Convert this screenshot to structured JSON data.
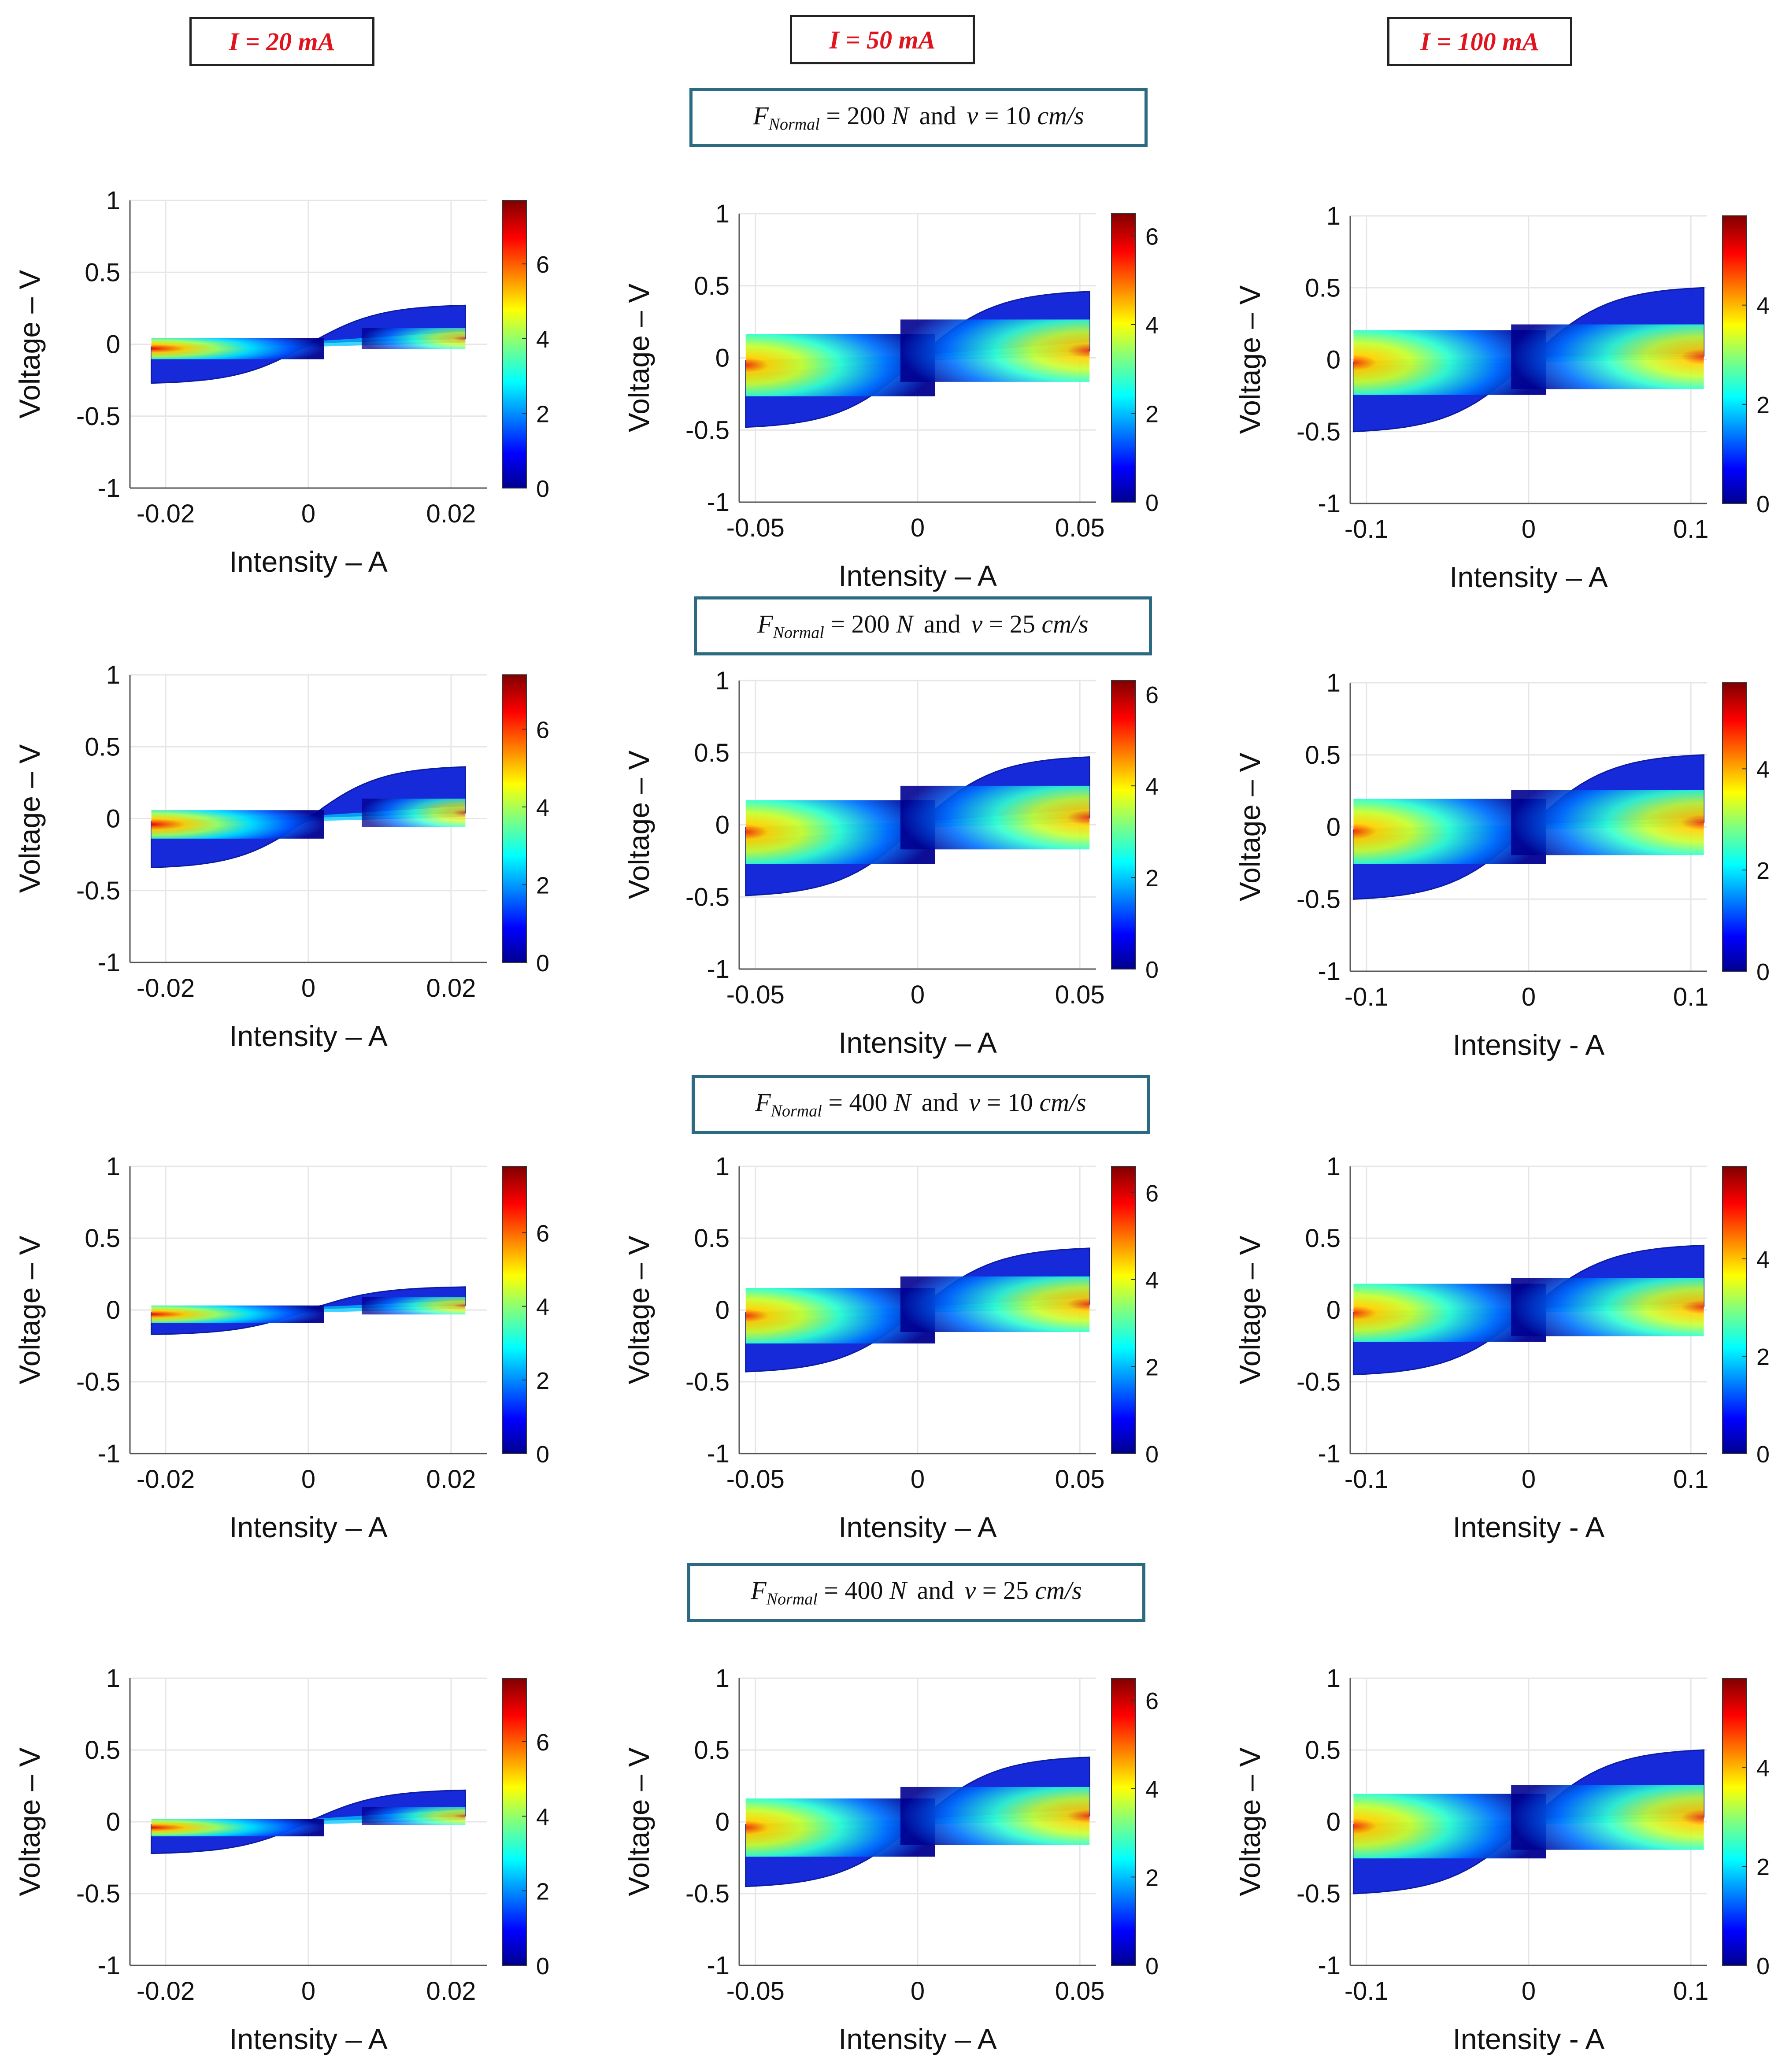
{
  "headers": {
    "col1": "I = 20 mA",
    "col2": "I = 50 mA",
    "col3": "I = 100 mA"
  },
  "conditions": [
    {
      "fvar": "F",
      "fsub": "Normal",
      "force": "= 200",
      "funit": "N",
      "and": "and",
      "vvar": "v",
      "speed": "= 10",
      "vunit": "cm/s"
    },
    {
      "fvar": "F",
      "fsub": "Normal",
      "force": "= 200",
      "funit": "N",
      "and": "and",
      "vvar": "v",
      "speed": "= 25",
      "vunit": "cm/s"
    },
    {
      "fvar": "F",
      "fsub": "Normal",
      "force": "= 400",
      "funit": "N",
      "and": "and",
      "vvar": "v",
      "speed": "= 10",
      "vunit": "cm/s"
    },
    {
      "fvar": "F",
      "fsub": "Normal",
      "force": "= 400",
      "funit": "N",
      "and": "and",
      "vvar": "v",
      "speed": "= 25",
      "vunit": "cm/s"
    }
  ],
  "colors": {
    "header_text": "#e0141e",
    "cond_border": "#2b6a80",
    "grid": "#e6e6e6",
    "axis": "#555555",
    "text": "#111111"
  },
  "chart_data": [
    {
      "type": "heatmap",
      "panel": "r1c1",
      "title": "",
      "xlabel": "Intensity – A",
      "ylabel": "Voltage – V",
      "xlim": [
        -0.025,
        0.025
      ],
      "ylim": [
        -1,
        1
      ],
      "xticks": [
        -0.02,
        0,
        0.02
      ],
      "xticklabels": [
        "-0.02",
        "0",
        "0.02"
      ],
      "yticks": [
        -1,
        -0.5,
        0,
        0.5,
        1
      ],
      "yticklabels": [
        "-1",
        "-0.5",
        "0",
        "0.5",
        "1"
      ],
      "colorbar": {
        "min": 0,
        "max": 7.7,
        "ticks": [
          0,
          2,
          4,
          6
        ]
      },
      "i_amp": 0.022,
      "v_upper_pos": 0.27,
      "v_lower_neg": -0.27,
      "band_pos": 0.04,
      "band_neg": -0.03,
      "hot_side": "negative"
    },
    {
      "type": "heatmap",
      "panel": "r1c2",
      "title": "",
      "xlabel": "Intensity – A",
      "ylabel": "Voltage – V",
      "xlim": [
        -0.055,
        0.055
      ],
      "ylim": [
        -1,
        1
      ],
      "xticks": [
        -0.05,
        0,
        0.05
      ],
      "xticklabels": [
        "-0.05",
        "0",
        "0.05"
      ],
      "yticks": [
        -1,
        -0.5,
        0,
        0.5,
        1
      ],
      "yticklabels": [
        "-1",
        "-0.5",
        "0",
        "0.5",
        "1"
      ],
      "colorbar": {
        "min": 0,
        "max": 6.5,
        "ticks": [
          0,
          2,
          4,
          6
        ]
      },
      "i_amp": 0.053,
      "v_upper_pos": 0.46,
      "v_lower_neg": -0.48,
      "band_pos": 0.05,
      "band_neg": -0.05,
      "hot_side": "both"
    },
    {
      "type": "heatmap",
      "panel": "r1c3",
      "title": "",
      "xlabel": "Intensity – A",
      "ylabel": "Voltage – V",
      "xlim": [
        -0.11,
        0.11
      ],
      "ylim": [
        -1,
        1
      ],
      "xticks": [
        -0.1,
        0,
        0.1
      ],
      "xticklabels": [
        "-0.1",
        "0",
        "0.1"
      ],
      "yticks": [
        -1,
        -0.5,
        0,
        0.5,
        1
      ],
      "yticklabels": [
        "-1",
        "-0.5",
        "0",
        "0.5",
        "1"
      ],
      "colorbar": {
        "min": 0,
        "max": 5.8,
        "ticks": [
          0,
          2,
          4
        ]
      },
      "i_amp": 0.108,
      "v_upper_pos": 0.5,
      "v_lower_neg": -0.5,
      "band_pos": 0.02,
      "band_neg": -0.02,
      "hot_side": "both"
    },
    {
      "type": "heatmap",
      "panel": "r2c1",
      "title": "",
      "xlabel": "Intensity – A",
      "ylabel": "Voltage – V",
      "xlim": [
        -0.025,
        0.025
      ],
      "ylim": [
        -1,
        1
      ],
      "xticks": [
        -0.02,
        0,
        0.02
      ],
      "xticklabels": [
        "-0.02",
        "0",
        "0.02"
      ],
      "yticks": [
        -1,
        -0.5,
        0,
        0.5,
        1
      ],
      "yticklabels": [
        "-1",
        "-0.5",
        "0",
        "0.5",
        "1"
      ],
      "colorbar": {
        "min": 0,
        "max": 7.4,
        "ticks": [
          0,
          2,
          4,
          6
        ]
      },
      "i_amp": 0.022,
      "v_upper_pos": 0.36,
      "v_lower_neg": -0.34,
      "band_pos": 0.04,
      "band_neg": -0.04,
      "hot_side": "negative"
    },
    {
      "type": "heatmap",
      "panel": "r2c2",
      "title": "",
      "xlabel": "Intensity – A",
      "ylabel": "Voltage – V",
      "xlim": [
        -0.055,
        0.055
      ],
      "ylim": [
        -1,
        1
      ],
      "xticks": [
        -0.05,
        0,
        0.05
      ],
      "xticklabels": [
        "-0.05",
        "0",
        "0.05"
      ],
      "yticks": [
        -1,
        -0.5,
        0,
        0.5,
        1
      ],
      "yticklabels": [
        "-1",
        "-0.5",
        "0",
        "0.5",
        "1"
      ],
      "colorbar": {
        "min": 0,
        "max": 6.3,
        "ticks": [
          0,
          2,
          4,
          6
        ]
      },
      "i_amp": 0.053,
      "v_upper_pos": 0.47,
      "v_lower_neg": -0.49,
      "band_pos": 0.05,
      "band_neg": -0.05,
      "hot_side": "both"
    },
    {
      "type": "heatmap",
      "panel": "r2c3",
      "title": "",
      "xlabel": "Intensity - A",
      "ylabel": "Voltage – V",
      "xlim": [
        -0.11,
        0.11
      ],
      "ylim": [
        -1,
        1
      ],
      "xticks": [
        -0.1,
        0,
        0.1
      ],
      "xticklabels": [
        "-0.1",
        "0",
        "0.1"
      ],
      "yticks": [
        -1,
        -0.5,
        0,
        0.5,
        1
      ],
      "yticklabels": [
        "-1",
        "-0.5",
        "0",
        "0.5",
        "1"
      ],
      "colorbar": {
        "min": 0,
        "max": 5.7,
        "ticks": [
          0,
          2,
          4
        ]
      },
      "i_amp": 0.108,
      "v_upper_pos": 0.5,
      "v_lower_neg": -0.5,
      "band_pos": 0.03,
      "band_neg": -0.03,
      "hot_side": "both"
    },
    {
      "type": "heatmap",
      "panel": "r3c1",
      "title": "",
      "xlabel": "Intensity – A",
      "ylabel": "Voltage – V",
      "xlim": [
        -0.025,
        0.025
      ],
      "ylim": [
        -1,
        1
      ],
      "xticks": [
        -0.02,
        0,
        0.02
      ],
      "xticklabels": [
        "-0.02",
        "0",
        "0.02"
      ],
      "yticks": [
        -1,
        -0.5,
        0,
        0.5,
        1
      ],
      "yticklabels": [
        "-1",
        "-0.5",
        "0",
        "0.5",
        "1"
      ],
      "colorbar": {
        "min": 0,
        "max": 7.8,
        "ticks": [
          0,
          2,
          4,
          6
        ]
      },
      "i_amp": 0.022,
      "v_upper_pos": 0.16,
      "v_lower_neg": -0.17,
      "band_pos": 0.03,
      "band_neg": -0.03,
      "hot_side": "negative"
    },
    {
      "type": "heatmap",
      "panel": "r3c2",
      "title": "",
      "xlabel": "Intensity – A",
      "ylabel": "Voltage – V",
      "xlim": [
        -0.055,
        0.055
      ],
      "ylim": [
        -1,
        1
      ],
      "xticks": [
        -0.05,
        0,
        0.05
      ],
      "xticklabels": [
        "-0.05",
        "0",
        "0.05"
      ],
      "yticks": [
        -1,
        -0.5,
        0,
        0.5,
        1
      ],
      "yticklabels": [
        "-1",
        "-0.5",
        "0",
        "0.5",
        "1"
      ],
      "colorbar": {
        "min": 0,
        "max": 6.6,
        "ticks": [
          0,
          2,
          4,
          6
        ]
      },
      "i_amp": 0.053,
      "v_upper_pos": 0.43,
      "v_lower_neg": -0.43,
      "band_pos": 0.04,
      "band_neg": -0.04,
      "hot_side": "both"
    },
    {
      "type": "heatmap",
      "panel": "r3c3",
      "title": "",
      "xlabel": "Intensity - A",
      "ylabel": "Voltage – V",
      "xlim": [
        -0.11,
        0.11
      ],
      "ylim": [
        -1,
        1
      ],
      "xticks": [
        -0.1,
        0,
        0.1
      ],
      "xticklabels": [
        "-0.1",
        "0",
        "0.1"
      ],
      "yticks": [
        -1,
        -0.5,
        0,
        0.5,
        1
      ],
      "yticklabels": [
        "-1",
        "-0.5",
        "0",
        "0.5",
        "1"
      ],
      "colorbar": {
        "min": 0,
        "max": 5.9,
        "ticks": [
          0,
          2,
          4
        ]
      },
      "i_amp": 0.108,
      "v_upper_pos": 0.45,
      "v_lower_neg": -0.45,
      "band_pos": 0.02,
      "band_neg": -0.02,
      "hot_side": "both"
    },
    {
      "type": "heatmap",
      "panel": "r4c1",
      "title": "",
      "xlabel": "Intensity – A",
      "ylabel": "Voltage – V",
      "xlim": [
        -0.025,
        0.025
      ],
      "ylim": [
        -1,
        1
      ],
      "xticks": [
        -0.02,
        0,
        0.02
      ],
      "xticklabels": [
        "-0.02",
        "0",
        "0.02"
      ],
      "yticks": [
        -1,
        -0.5,
        0,
        0.5,
        1
      ],
      "yticklabels": [
        "-1",
        "-0.5",
        "0",
        "0.5",
        "1"
      ],
      "colorbar": {
        "min": 0,
        "max": 7.7,
        "ticks": [
          0,
          2,
          4,
          6
        ]
      },
      "i_amp": 0.022,
      "v_upper_pos": 0.22,
      "v_lower_neg": -0.22,
      "band_pos": 0.04,
      "band_neg": -0.04,
      "hot_side": "negative"
    },
    {
      "type": "heatmap",
      "panel": "r4c2",
      "title": "",
      "xlabel": "Intensity – A",
      "ylabel": "Voltage – V",
      "xlim": [
        -0.055,
        0.055
      ],
      "ylim": [
        -1,
        1
      ],
      "xticks": [
        -0.05,
        0,
        0.05
      ],
      "xticklabels": [
        "-0.05",
        "0",
        "0.05"
      ],
      "yticks": [
        -1,
        -0.5,
        0,
        0.5,
        1
      ],
      "yticklabels": [
        "-1",
        "-0.5",
        "0",
        "0.5",
        "1"
      ],
      "colorbar": {
        "min": 0,
        "max": 6.5,
        "ticks": [
          0,
          2,
          4,
          6
        ]
      },
      "i_amp": 0.053,
      "v_upper_pos": 0.45,
      "v_lower_neg": -0.45,
      "band_pos": 0.04,
      "band_neg": -0.04,
      "hot_side": "both"
    },
    {
      "type": "heatmap",
      "panel": "r4c3",
      "title": "",
      "xlabel": "Intensity - A",
      "ylabel": "Voltage – V",
      "xlim": [
        -0.11,
        0.11
      ],
      "ylim": [
        -1,
        1
      ],
      "xticks": [
        -0.1,
        0,
        0.1
      ],
      "xticklabels": [
        "-0.1",
        "0",
        "0.1"
      ],
      "yticks": [
        -1,
        -0.5,
        0,
        0.5,
        1
      ],
      "yticklabels": [
        "-1",
        "-0.5",
        "0",
        "0.5",
        "1"
      ],
      "colorbar": {
        "min": 0,
        "max": 5.8,
        "ticks": [
          0,
          2,
          4
        ]
      },
      "i_amp": 0.108,
      "v_upper_pos": 0.5,
      "v_lower_neg": -0.5,
      "band_pos": 0.03,
      "band_neg": -0.03,
      "hot_side": "both"
    }
  ]
}
